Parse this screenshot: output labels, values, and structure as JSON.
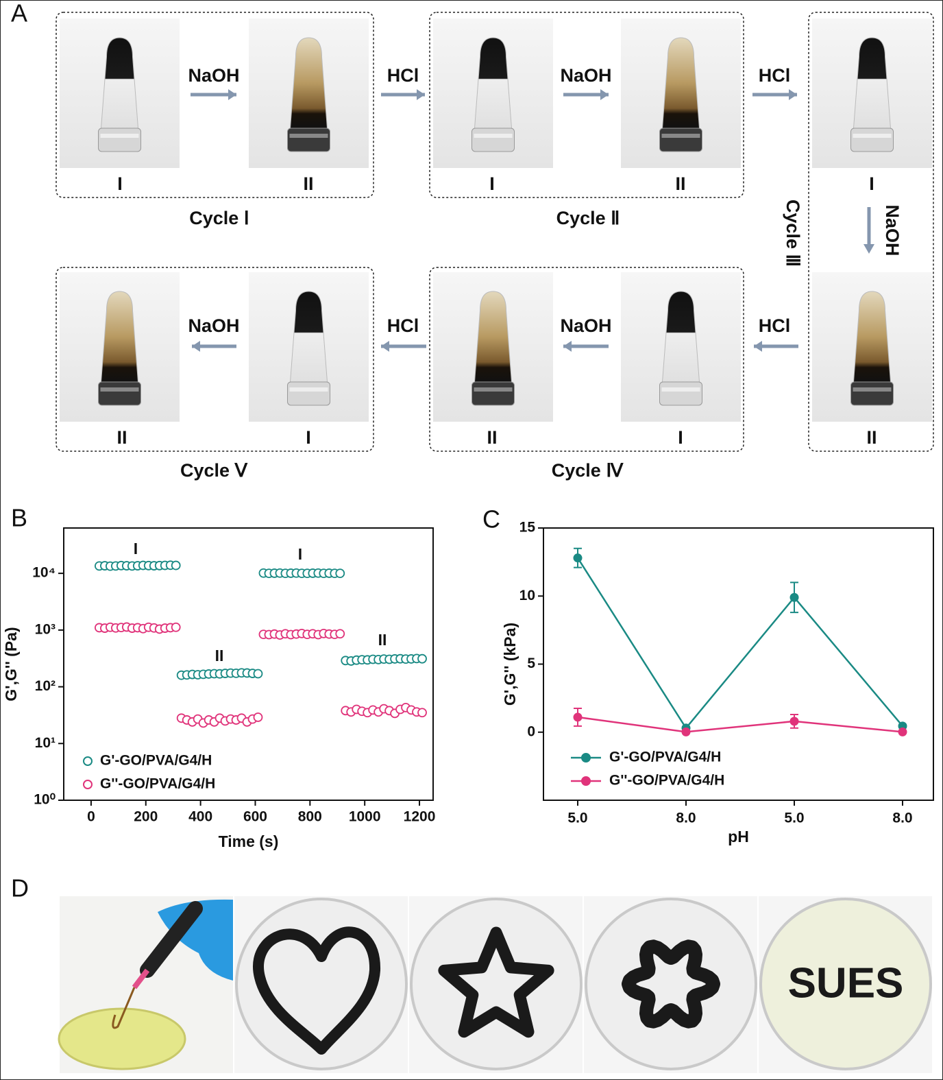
{
  "panel_a": {
    "label": "A",
    "reagents": [
      "NaOH",
      "HCl",
      "NaOH",
      "HCl",
      "NaOH",
      "HCl",
      "NaOH",
      "HCl",
      "NaOH"
    ],
    "tube_labels": [
      "I",
      "II",
      "I",
      "II",
      "I",
      "II",
      "I",
      "II",
      "I",
      "II"
    ],
    "cycles": [
      "Cycle Ⅰ",
      "Cycle Ⅱ",
      "Cycle Ⅲ",
      "Cycle Ⅳ",
      "Cycle Ⅴ"
    ]
  },
  "panel_b": {
    "label": "B",
    "annotations": [
      "I",
      "II",
      "I",
      "II"
    ]
  },
  "panel_c": {
    "label": "C"
  },
  "panel_d": {
    "label": "D",
    "photo_text": "SUES"
  },
  "chart_data": [
    {
      "type": "scatter",
      "x_label": "Time (s)",
      "y_label": "G',G'' (Pa)",
      "log_y": true,
      "xlim": [
        -100,
        1250
      ],
      "xticks": [
        0,
        200,
        400,
        600,
        800,
        1000,
        1200
      ],
      "ylim": [
        1,
        63000
      ],
      "yticks": [
        {
          "value": 1,
          "label": "10⁰"
        },
        {
          "value": 10,
          "label": "10¹"
        },
        {
          "value": 100,
          "label": "10²"
        },
        {
          "value": 1000,
          "label": "10³"
        },
        {
          "value": 10000,
          "label": "10⁴"
        }
      ],
      "legend": "lower left",
      "x": [
        30,
        50,
        70,
        90,
        110,
        130,
        150,
        170,
        190,
        210,
        230,
        250,
        270,
        290,
        310,
        330,
        350,
        370,
        390,
        410,
        430,
        450,
        470,
        490,
        510,
        530,
        550,
        570,
        590,
        610,
        630,
        650,
        670,
        690,
        710,
        730,
        750,
        770,
        790,
        810,
        830,
        850,
        870,
        890,
        910,
        930,
        950,
        970,
        990,
        1010,
        1030,
        1050,
        1070,
        1090,
        1110,
        1130,
        1150,
        1170,
        1190,
        1210
      ],
      "series": [
        {
          "name": "G'-GO/PVA/G4/H",
          "color": "#1a8a84",
          "values": [
            13500,
            13600,
            13400,
            13500,
            13700,
            13600,
            13500,
            13600,
            13800,
            13700,
            13600,
            13700,
            13800,
            13900,
            13800,
            160,
            162,
            165,
            163,
            166,
            168,
            170,
            169,
            172,
            174,
            173,
            176,
            175,
            172,
            170,
            10100,
            10000,
            10050,
            10100,
            10000,
            10050,
            10100,
            10000,
            10000,
            10050,
            10100,
            10000,
            10050,
            10000,
            10000,
            290,
            285,
            295,
            300,
            298,
            305,
            302,
            308,
            305,
            310,
            312,
            308,
            310,
            315,
            312
          ]
        },
        {
          "name": "G''-GO/PVA/G4/H",
          "color": "#e0337a",
          "values": [
            1100,
            1080,
            1120,
            1090,
            1110,
            1130,
            1080,
            1100,
            1060,
            1120,
            1090,
            1040,
            1080,
            1100,
            1120,
            28,
            26,
            24,
            27,
            23,
            26,
            24,
            28,
            25,
            27,
            26,
            28,
            24,
            27,
            29,
            840,
            830,
            850,
            820,
            860,
            830,
            850,
            870,
            840,
            860,
            830,
            870,
            850,
            840,
            860,
            38,
            36,
            40,
            37,
            35,
            39,
            36,
            41,
            38,
            34,
            40,
            43,
            39,
            36,
            35
          ]
        }
      ]
    },
    {
      "type": "line",
      "x_label": "pH",
      "y_label": "G',G'' (kPa)",
      "categories": [
        "5.0",
        "8.0",
        "5.0",
        "8.0"
      ],
      "ylim": [
        -5,
        15
      ],
      "yticks": [
        0,
        5,
        10,
        15
      ],
      "legend": "lower left",
      "series": [
        {
          "name": "G'-GO/PVA/G4/H",
          "color": "#1a8a84",
          "values": [
            12.8,
            0.3,
            9.9,
            0.45
          ],
          "errors": [
            0.7,
            0.1,
            1.1,
            0.1
          ]
        },
        {
          "name": "G''-GO/PVA/G4/H",
          "color": "#e0337a",
          "values": [
            1.1,
            0.02,
            0.8,
            0.02
          ],
          "errors": [
            0.65,
            0.05,
            0.5,
            0.05
          ]
        }
      ]
    }
  ]
}
